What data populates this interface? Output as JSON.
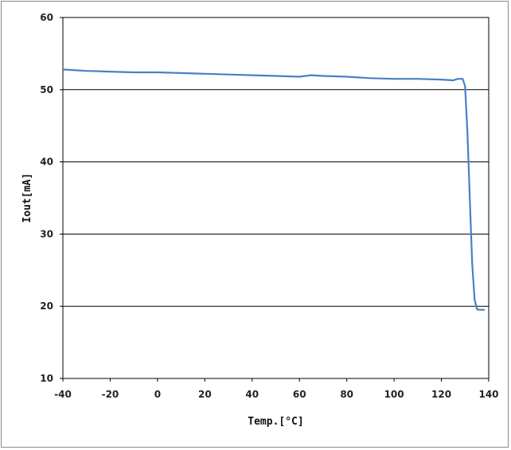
{
  "chart_data": {
    "type": "line",
    "title": "",
    "xlabel": "Temp.[°C]",
    "ylabel": "Iout[mA]",
    "xlim": [
      -40,
      140
    ],
    "ylim": [
      10,
      60
    ],
    "x_ticks": [
      -40,
      -20,
      0,
      20,
      40,
      60,
      80,
      100,
      120,
      140
    ],
    "y_ticks": [
      10,
      20,
      30,
      40,
      50,
      60
    ],
    "grid": "horizontal",
    "legend": "none",
    "line_color": "#4a7fc8",
    "grid_color": "#000000",
    "series": [
      {
        "x": [
          -40,
          -30,
          -20,
          -10,
          0,
          10,
          20,
          30,
          40,
          50,
          60,
          65,
          70,
          80,
          90,
          100,
          110,
          120,
          125,
          127,
          129,
          130,
          131,
          132,
          133,
          134,
          135,
          136,
          137,
          138
        ],
        "y": [
          52.8,
          52.6,
          52.5,
          52.4,
          52.4,
          52.3,
          52.2,
          52.1,
          52.0,
          51.9,
          51.8,
          52.0,
          51.9,
          51.8,
          51.6,
          51.5,
          51.5,
          51.4,
          51.3,
          51.5,
          51.5,
          50.5,
          44.0,
          35.0,
          26.0,
          21.0,
          19.6,
          19.5,
          19.5,
          19.5
        ]
      }
    ]
  }
}
